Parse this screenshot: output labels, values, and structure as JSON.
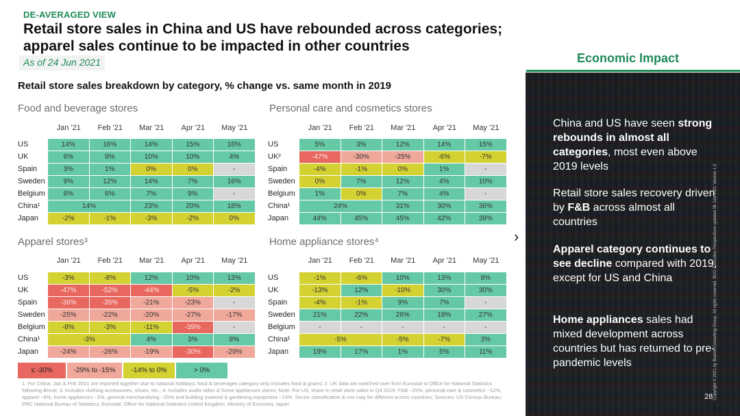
{
  "header": {
    "eyebrow": "DE-AVERAGED VIEW",
    "title": "Retail store sales in China and US have rebounded across categories; apparel sales continue to be impacted in other countries",
    "as_of": "As of 24 Jun 2021",
    "section_label": "Economic Impact"
  },
  "subtitle": "Retail store sales breakdown by category, % change vs. same month in 2019",
  "months": [
    "Jan '21",
    "Feb '21",
    "Mar '21",
    "Apr '21",
    "May '21"
  ],
  "colors": {
    "green": "#66c9a5",
    "yellow": "#d4d233",
    "salmon": "#f0a89a",
    "red": "#e8675f",
    "grey": "#d7d7d7",
    "brand": "#1e8a57"
  },
  "tables": [
    {
      "title": "Food and beverage stores",
      "rows": [
        {
          "label": "US",
          "cells": [
            {
              "v": "14%",
              "c": "g"
            },
            {
              "v": "16%",
              "c": "g"
            },
            {
              "v": "14%",
              "c": "g"
            },
            {
              "v": "15%",
              "c": "g"
            },
            {
              "v": "16%",
              "c": "g"
            }
          ]
        },
        {
          "label": "UK",
          "cells": [
            {
              "v": "6%",
              "c": "g"
            },
            {
              "v": "9%",
              "c": "g"
            },
            {
              "v": "10%",
              "c": "g"
            },
            {
              "v": "10%",
              "c": "g"
            },
            {
              "v": "4%",
              "c": "g"
            }
          ]
        },
        {
          "label": "Spain",
          "cells": [
            {
              "v": "3%",
              "c": "g"
            },
            {
              "v": "1%",
              "c": "g"
            },
            {
              "v": "0%",
              "c": "y"
            },
            {
              "v": "0%",
              "c": "y"
            },
            {
              "v": "-",
              "c": "n"
            }
          ]
        },
        {
          "label": "Sweden",
          "cells": [
            {
              "v": "9%",
              "c": "g"
            },
            {
              "v": "12%",
              "c": "g"
            },
            {
              "v": "14%",
              "c": "g"
            },
            {
              "v": "7%",
              "c": "g"
            },
            {
              "v": "16%",
              "c": "g"
            }
          ]
        },
        {
          "label": "Belgium",
          "cells": [
            {
              "v": "6%",
              "c": "g"
            },
            {
              "v": "6%",
              "c": "g"
            },
            {
              "v": "7%",
              "c": "g"
            },
            {
              "v": "9%",
              "c": "g"
            },
            {
              "v": "-",
              "c": "n"
            }
          ]
        },
        {
          "label": "China¹",
          "cells": [
            {
              "v": "14%",
              "c": "g",
              "span": 2
            },
            {
              "v": "23%",
              "c": "g"
            },
            {
              "v": "20%",
              "c": "g"
            },
            {
              "v": "18%",
              "c": "g"
            }
          ]
        },
        {
          "label": "Japan",
          "cells": [
            {
              "v": "-2%",
              "c": "y"
            },
            {
              "v": "-1%",
              "c": "y"
            },
            {
              "v": "-3%",
              "c": "y"
            },
            {
              "v": "-2%",
              "c": "y"
            },
            {
              "v": "0%",
              "c": "y"
            }
          ]
        }
      ]
    },
    {
      "title": "Personal care and cosmetics stores",
      "rows": [
        {
          "label": "US",
          "cells": [
            {
              "v": "5%",
              "c": "g"
            },
            {
              "v": "3%",
              "c": "g"
            },
            {
              "v": "12%",
              "c": "g"
            },
            {
              "v": "14%",
              "c": "g"
            },
            {
              "v": "15%",
              "c": "g"
            }
          ]
        },
        {
          "label": "UK²",
          "cells": [
            {
              "v": "-47%",
              "c": "r"
            },
            {
              "v": "-30%",
              "c": "o"
            },
            {
              "v": "-25%",
              "c": "o"
            },
            {
              "v": "-6%",
              "c": "y"
            },
            {
              "v": "-7%",
              "c": "y"
            }
          ]
        },
        {
          "label": "Spain",
          "cells": [
            {
              "v": "-4%",
              "c": "y"
            },
            {
              "v": "-1%",
              "c": "y"
            },
            {
              "v": "0%",
              "c": "y"
            },
            {
              "v": "1%",
              "c": "g"
            },
            {
              "v": "-",
              "c": "n"
            }
          ]
        },
        {
          "label": "Sweden",
          "cells": [
            {
              "v": "0%",
              "c": "y"
            },
            {
              "v": "7%",
              "c": "g"
            },
            {
              "v": "12%",
              "c": "g"
            },
            {
              "v": "4%",
              "c": "g"
            },
            {
              "v": "10%",
              "c": "g"
            }
          ]
        },
        {
          "label": "Belgium",
          "cells": [
            {
              "v": "1%",
              "c": "g"
            },
            {
              "v": "0%",
              "c": "y"
            },
            {
              "v": "7%",
              "c": "g"
            },
            {
              "v": "4%",
              "c": "g"
            },
            {
              "v": "-",
              "c": "n"
            }
          ]
        },
        {
          "label": "China¹",
          "cells": [
            {
              "v": "24%",
              "c": "g",
              "span": 2
            },
            {
              "v": "31%",
              "c": "g"
            },
            {
              "v": "30%",
              "c": "g"
            },
            {
              "v": "36%",
              "c": "g"
            }
          ]
        },
        {
          "label": "Japan",
          "cells": [
            {
              "v": "44%",
              "c": "g"
            },
            {
              "v": "45%",
              "c": "g"
            },
            {
              "v": "45%",
              "c": "g"
            },
            {
              "v": "42%",
              "c": "g"
            },
            {
              "v": "39%",
              "c": "g"
            }
          ]
        }
      ]
    },
    {
      "title": "Apparel stores³",
      "rows": [
        {
          "label": "US",
          "cells": [
            {
              "v": "-3%",
              "c": "y"
            },
            {
              "v": "-8%",
              "c": "y"
            },
            {
              "v": "12%",
              "c": "g"
            },
            {
              "v": "10%",
              "c": "g"
            },
            {
              "v": "13%",
              "c": "g"
            }
          ]
        },
        {
          "label": "UK",
          "cells": [
            {
              "v": "-47%",
              "c": "r"
            },
            {
              "v": "-52%",
              "c": "r"
            },
            {
              "v": "-44%",
              "c": "r"
            },
            {
              "v": "-5%",
              "c": "y"
            },
            {
              "v": "-2%",
              "c": "y"
            }
          ]
        },
        {
          "label": "Spain",
          "cells": [
            {
              "v": "-36%",
              "c": "r"
            },
            {
              "v": "-35%",
              "c": "r"
            },
            {
              "v": "-21%",
              "c": "o"
            },
            {
              "v": "-23%",
              "c": "o"
            },
            {
              "v": "-",
              "c": "n"
            }
          ]
        },
        {
          "label": "Sweden",
          "cells": [
            {
              "v": "-25%",
              "c": "o"
            },
            {
              "v": "-22%",
              "c": "o"
            },
            {
              "v": "-20%",
              "c": "o"
            },
            {
              "v": "-27%",
              "c": "o"
            },
            {
              "v": "-17%",
              "c": "o"
            }
          ]
        },
        {
          "label": "Belgium",
          "cells": [
            {
              "v": "-8%",
              "c": "y"
            },
            {
              "v": "-3%",
              "c": "y"
            },
            {
              "v": "-11%",
              "c": "y"
            },
            {
              "v": "-39%",
              "c": "r"
            },
            {
              "v": "-",
              "c": "n"
            }
          ]
        },
        {
          "label": "China¹",
          "cells": [
            {
              "v": "-3%",
              "c": "y",
              "span": 2
            },
            {
              "v": "4%",
              "c": "g"
            },
            {
              "v": "3%",
              "c": "g"
            },
            {
              "v": "8%",
              "c": "g"
            }
          ]
        },
        {
          "label": "Japan",
          "cells": [
            {
              "v": "-24%",
              "c": "o"
            },
            {
              "v": "-26%",
              "c": "o"
            },
            {
              "v": "-19%",
              "c": "o"
            },
            {
              "v": "-30%",
              "c": "r"
            },
            {
              "v": "-29%",
              "c": "o"
            }
          ]
        }
      ]
    },
    {
      "title": "Home appliance stores⁴",
      "rows": [
        {
          "label": "US",
          "cells": [
            {
              "v": "-1%",
              "c": "y"
            },
            {
              "v": "-6%",
              "c": "y"
            },
            {
              "v": "10%",
              "c": "g"
            },
            {
              "v": "13%",
              "c": "g"
            },
            {
              "v": "8%",
              "c": "g"
            }
          ]
        },
        {
          "label": "UK",
          "cells": [
            {
              "v": "-13%",
              "c": "y"
            },
            {
              "v": "12%",
              "c": "g"
            },
            {
              "v": "-10%",
              "c": "y"
            },
            {
              "v": "30%",
              "c": "g"
            },
            {
              "v": "30%",
              "c": "g"
            }
          ]
        },
        {
          "label": "Spain",
          "cells": [
            {
              "v": "-4%",
              "c": "y"
            },
            {
              "v": "-1%",
              "c": "y"
            },
            {
              "v": "9%",
              "c": "g"
            },
            {
              "v": "7%",
              "c": "g"
            },
            {
              "v": "-",
              "c": "n"
            }
          ]
        },
        {
          "label": "Sweden",
          "cells": [
            {
              "v": "21%",
              "c": "g"
            },
            {
              "v": "22%",
              "c": "g"
            },
            {
              "v": "26%",
              "c": "g"
            },
            {
              "v": "18%",
              "c": "g"
            },
            {
              "v": "27%",
              "c": "g"
            }
          ]
        },
        {
          "label": "Belgium",
          "cells": [
            {
              "v": "-",
              "c": "n"
            },
            {
              "v": "-",
              "c": "n"
            },
            {
              "v": "-",
              "c": "n"
            },
            {
              "v": "-",
              "c": "n"
            },
            {
              "v": "-",
              "c": "n"
            }
          ]
        },
        {
          "label": "China¹",
          "cells": [
            {
              "v": "-5%",
              "c": "y",
              "span": 2
            },
            {
              "v": "-5%",
              "c": "y"
            },
            {
              "v": "-7%",
              "c": "y"
            },
            {
              "v": "3%",
              "c": "g"
            }
          ]
        },
        {
          "label": "Japan",
          "cells": [
            {
              "v": "19%",
              "c": "g"
            },
            {
              "v": "17%",
              "c": "g"
            },
            {
              "v": "1%",
              "c": "g"
            },
            {
              "v": "5%",
              "c": "g"
            },
            {
              "v": "11%",
              "c": "g"
            }
          ]
        }
      ]
    }
  ],
  "legend": [
    {
      "label": "≤ -30%",
      "c": "r"
    },
    {
      "label": "-29% to -15%",
      "c": "o"
    },
    {
      "label": "-14% to 0%",
      "c": "y"
    },
    {
      "label": "> 0%",
      "c": "g"
    }
  ],
  "footnote": "1. For China, Jan & Feb 2021 are reported together due to national holidays; food & beverages category only includes food & grains; 2. UK data set switched over from Eurostat to Office for National Statistics following Brexit; 3. Includes clothing accessories, shoes, etc.; 4. Includes audio video & home appliances stores; Note: For US, share in retail store sales in Q4 2019: F&B ~25%, personal care & cosmetics ~12%, apparel ~6%, home appliances ~3%, general merchandising ~25% and building material & gardening equipment ~13%. Sector classification & mix may be different across countries; Sources: US Census Bureau; PRC National Bureau of Statistics; Eurostat; Office for National Statistics United Kingdom, Ministry of Economy Japan",
  "insights": [
    {
      "pre": "China and US have seen ",
      "bold": "strong rebounds in almost all categories",
      "post": ", most even above 2019 levels"
    },
    {
      "pre": "Retail store sales recovery driven by ",
      "bold": "F&B",
      "post": " across almost all countries"
    },
    {
      "pre": "",
      "bold": "Apparel category continues to see decline",
      "post": " compared with 2019, except for US and China"
    },
    {
      "pre": "",
      "bold": "Home appliances",
      "post": " sales had mixed development across countries but has returned to pre-pandemic levels"
    }
  ],
  "copyright": "Copyright © 2021 by Boston Consulting Group. All rights reserved. BCG Executive Perspectives updated 06 July 2021 Version 1.0",
  "page_number": "28",
  "chevron": "›"
}
